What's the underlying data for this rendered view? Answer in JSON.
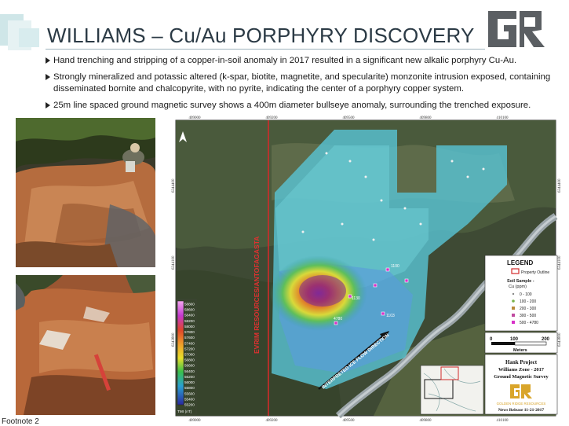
{
  "title": "WILLIAMS – Cu/Au PORPHYRY DISCOVERY",
  "bullets": [
    "Hand trenching and stripping of a copper-in-soil anomaly in 2017 resulted in a significant new alkalic porphyry Cu-Au.",
    "Strongly mineralized and potassic altered  (k-spar, biotite, magnetite, and specularite) monzonite intrusion exposed, containing disseminated bornite and chalcopyrite, with no pyrite, indicating the center of a porphyry copper system.",
    "25m line spaced ground magnetic survey shows a 400m diameter bullseye anomaly, surrounding the trenched exposure."
  ],
  "map": {
    "easting_ticks": [
      "409000",
      "409200",
      "409500",
      "409800",
      "410100"
    ],
    "northing_ticks": [
      "6344400",
      "6344100",
      "6343800"
    ],
    "boundary_label": "EVRIM RESOURCES/ANTOFAGASTA",
    "ice_flow_label": "INTERPRETED ICE FLOW DIRECTION",
    "sample_values": [
      "1100",
      "1130",
      "4780",
      "1103"
    ],
    "tmi_scale": [
      "58800",
      "58600",
      "58400",
      "58200",
      "58000",
      "57800",
      "57600",
      "57400",
      "57200",
      "57000",
      "56800",
      "56600",
      "56400",
      "56200",
      "56000",
      "55800",
      "55600",
      "55400",
      "55200"
    ],
    "tmi_unit": "TMI (nT)",
    "legend": {
      "title": "LEGEND",
      "property": "Property Outline",
      "soil_title": "Soil Sample -",
      "soil_unit": "Cu (ppm)",
      "classes": [
        "0 - 100",
        "100 - 200",
        "200 - 300",
        "300 - 500",
        "500 - 4780"
      ]
    },
    "scale": {
      "labels": [
        "0",
        "100",
        "200"
      ],
      "unit": "Meters"
    },
    "title_block": [
      "Hank Project",
      "Williams Zone - 2017",
      "Ground Magnetic Survey"
    ],
    "company": "GOLDEN RIDGE RESOURCES",
    "release": "News Release 11-21-2017"
  },
  "footnote": "Footnote 2",
  "colors": {
    "accent": "#2e6f7a",
    "boundary": "#d22a2a",
    "title": "#2b3a45"
  }
}
